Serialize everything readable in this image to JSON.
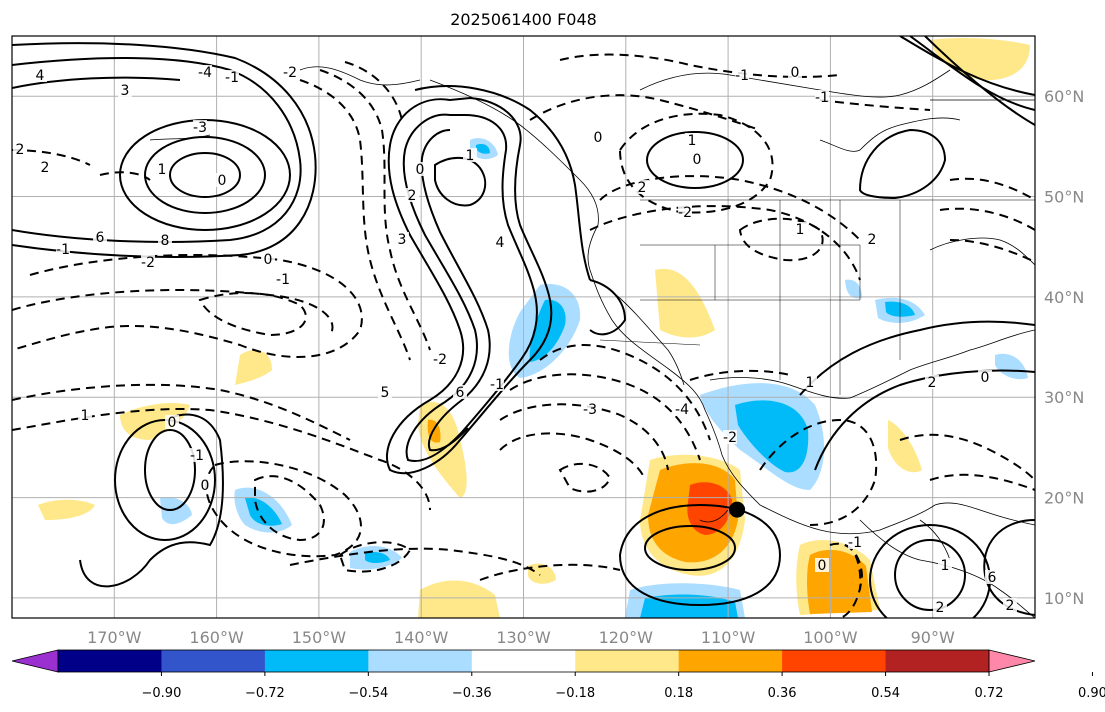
{
  "title": "2025061400 F048",
  "map": {
    "lon_labels": [
      "170°W",
      "160°W",
      "150°W",
      "140°W",
      "130°W",
      "120°W",
      "110°W",
      "100°W",
      "90°W"
    ],
    "lat_labels": [
      "60°N",
      "50°N",
      "40°N",
      "30°N",
      "20°N",
      "10°N"
    ],
    "lon_range": [
      -180,
      -80
    ],
    "lat_range": [
      8,
      66
    ],
    "grid": true,
    "contour_labels": [
      "4",
      "3",
      "2",
      "2",
      "1",
      "0",
      "6",
      "8",
      "-1",
      "-2",
      "0",
      "-1",
      "-2",
      "-3",
      "-4",
      "-1",
      "0",
      "1",
      "2",
      "3",
      "4",
      "5",
      "6",
      "-2",
      "-1",
      "0",
      "2",
      "1",
      "0",
      "-1",
      "0",
      "-1",
      "-2",
      "-3",
      "-4",
      "-2",
      "1",
      "2",
      "0",
      "1",
      "2",
      "-1",
      "0",
      "1",
      "2",
      "6",
      "2",
      "1",
      "0",
      "-1",
      "0"
    ],
    "marker": {
      "name": "storm-center",
      "lat": 19,
      "lon": -110
    }
  },
  "colorbar": {
    "ticks": [
      "−0.90",
      "−0.72",
      "−0.54",
      "−0.36",
      "−0.18",
      "0.18",
      "0.36",
      "0.54",
      "0.72",
      "0.90"
    ],
    "colors": [
      "#9b30d0",
      "#000088",
      "#3355cc",
      "#00bbf8",
      "#aaddff",
      "#ffffff",
      "#ffe88a",
      "#ffa500",
      "#ff4400",
      "#b22222",
      "#ff88aa"
    ]
  }
}
